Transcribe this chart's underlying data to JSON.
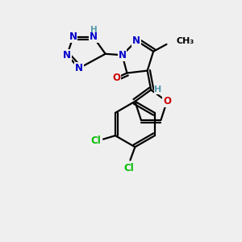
{
  "bg_color": "#efefef",
  "atom_colors": {
    "N": "#0000cc",
    "O": "#cc0000",
    "Cl": "#00bb00",
    "C": "#000000",
    "H": "#5599aa"
  },
  "bond_color": "#000000",
  "bond_width": 1.6,
  "fig_width": 3.0,
  "fig_height": 3.0,
  "dpi": 100
}
